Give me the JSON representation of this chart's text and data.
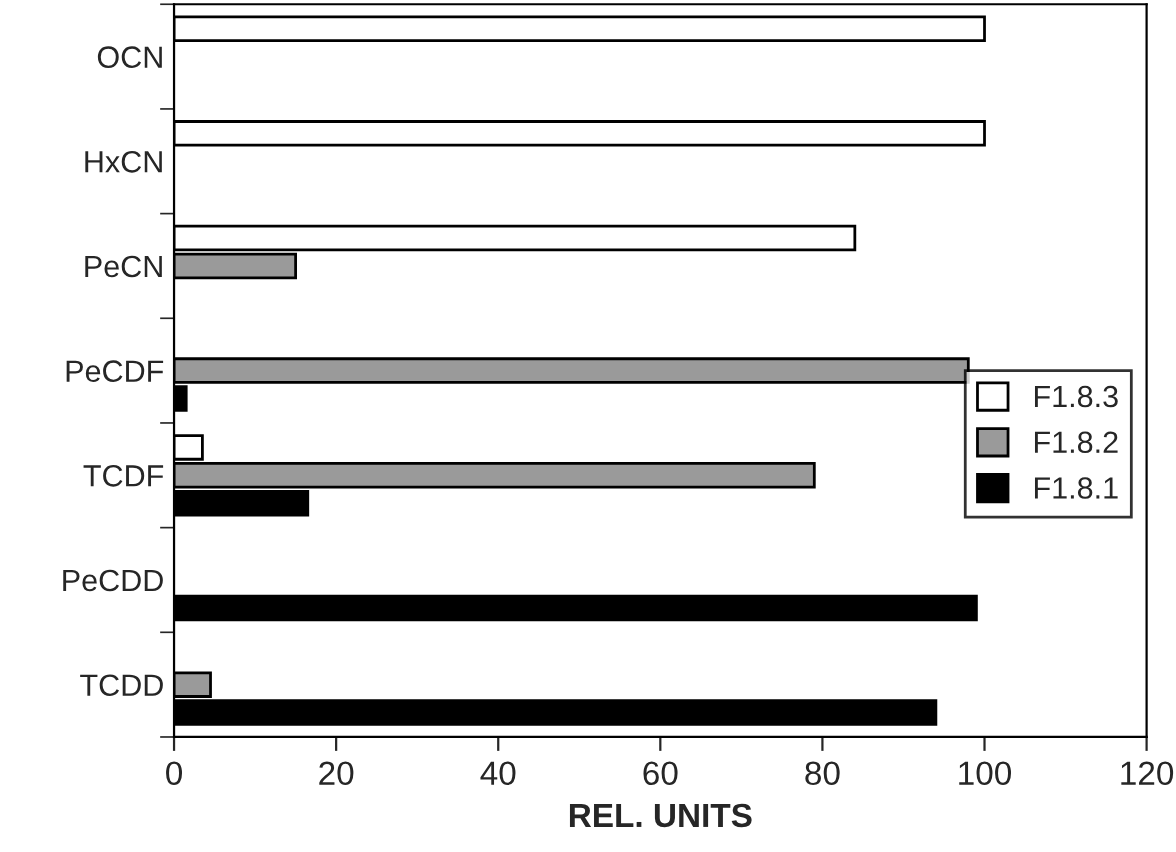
{
  "chart_data": {
    "type": "bar",
    "orientation": "horizontal",
    "xlabel": "REL. UNITS",
    "categories": [
      "OCN",
      "HxCN",
      "PeCN",
      "PeCDF",
      "TCDF",
      "PeCDD",
      "TCDD"
    ],
    "series": [
      {
        "name": "F1.8.3",
        "color": "#ffffff",
        "values": [
          100,
          100,
          84,
          null,
          3.5,
          null,
          null
        ]
      },
      {
        "name": "F1.8.2",
        "color": "#9a9a9a",
        "values": [
          null,
          null,
          15,
          98,
          79,
          null,
          4.5
        ]
      },
      {
        "name": "F1.8.1",
        "color": "#000000",
        "values": [
          null,
          null,
          null,
          1.5,
          16.5,
          99,
          94
        ]
      }
    ],
    "xlim": [
      0,
      120
    ],
    "xticks": [
      0,
      20,
      40,
      60,
      80,
      100,
      120
    ],
    "grid": false,
    "legend": "right"
  }
}
